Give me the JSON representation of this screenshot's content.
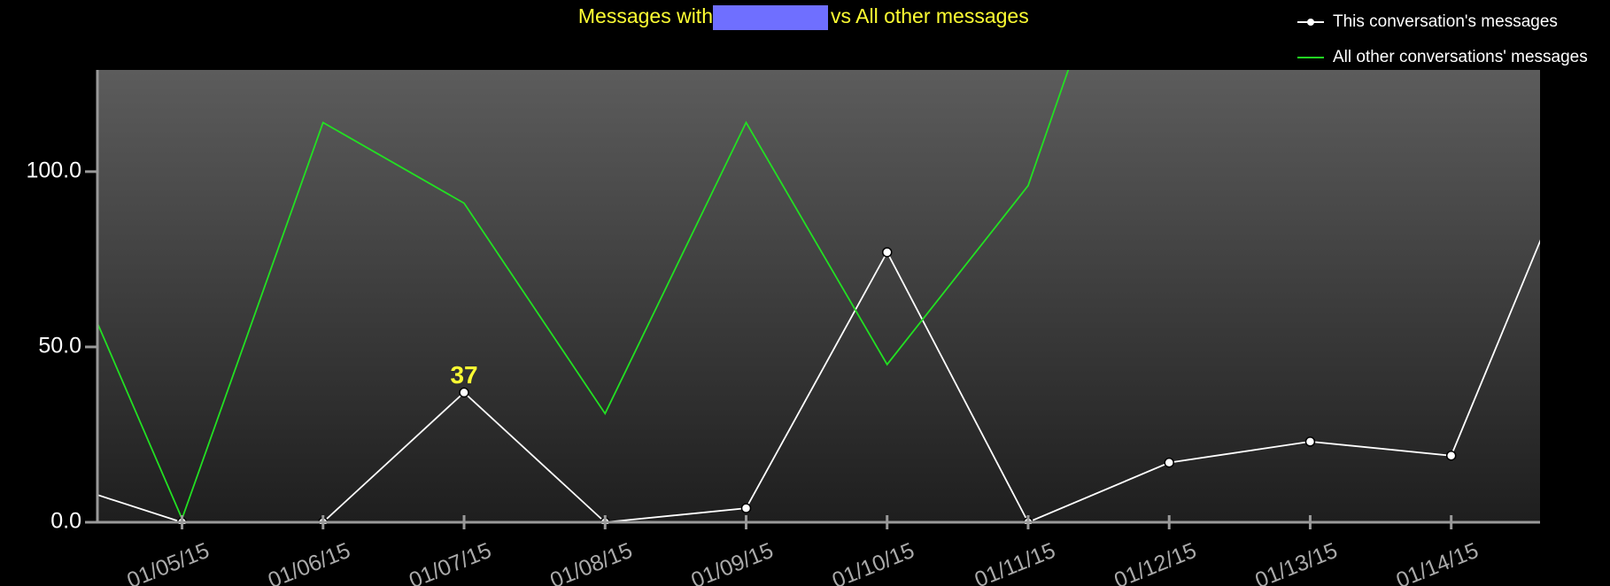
{
  "chart_data": {
    "type": "line",
    "title_parts": [
      "Messages with",
      "vs All other messages"
    ],
    "categories": [
      null,
      "01/05/15",
      "01/06/15",
      "01/07/15",
      "01/08/15",
      "01/09/15",
      "01/10/15",
      "01/11/15",
      "01/12/15",
      "01/13/15",
      "01/14/15",
      null
    ],
    "series": [
      {
        "name": "This conversation's messages",
        "color": "#ffffff",
        "markers": true,
        "values": [
          13,
          0,
          0,
          37,
          0,
          4,
          77,
          0,
          17,
          23,
          19,
          116
        ]
      },
      {
        "name": "All other conversations' messages",
        "color": "#22e022",
        "markers": false,
        "values": [
          94,
          1,
          114,
          91,
          31,
          114,
          45,
          96,
          212,
          null,
          null,
          null
        ]
      }
    ],
    "xlim": [
      0.4,
      10.63
    ],
    "ylim": [
      0,
      129
    ],
    "yticks": [
      {
        "value": 0,
        "label": "0.0"
      },
      {
        "value": 50,
        "label": "50.0"
      },
      {
        "value": 100,
        "label": "100.0"
      }
    ],
    "legend": "top-right"
  }
}
